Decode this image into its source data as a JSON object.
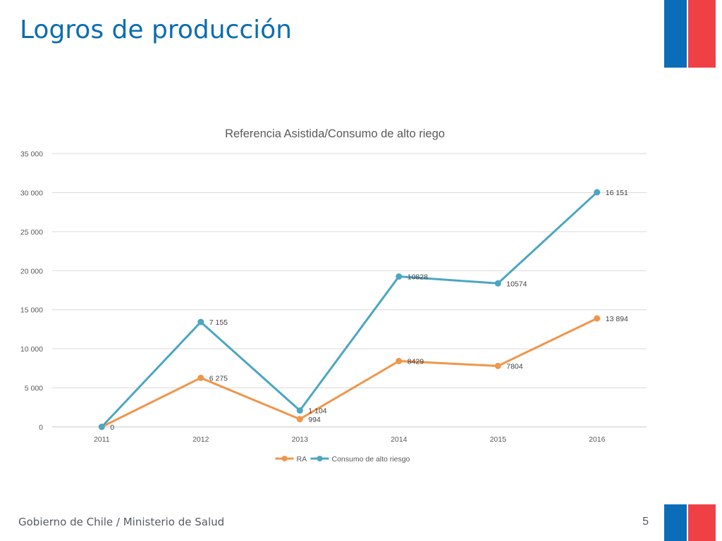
{
  "slide": {
    "title": "Logros de producción",
    "footer": "Gobierno de Chile / Ministerio de Salud",
    "page_number": "5",
    "colors": {
      "title": "#0b6db0",
      "flag_blue": "#0b6db8",
      "flag_red": "#ef4046"
    }
  },
  "chart_data": {
    "type": "line",
    "title": "Referencia Asistida/Consumo de alto riego",
    "xlabel": "",
    "ylabel": "",
    "x": [
      "2011",
      "2012",
      "2013",
      "2014",
      "2015",
      "2016"
    ],
    "ylim": [
      0,
      35000
    ],
    "y_ticks": [
      0,
      5000,
      10000,
      15000,
      20000,
      25000,
      30000,
      35000
    ],
    "y_tick_labels": [
      "0",
      "5 000",
      "10 000",
      "15 000",
      "20 000",
      "25 000",
      "30 000",
      "35 000"
    ],
    "grid": true,
    "legend_position": "bottom",
    "series": [
      {
        "name": "RA",
        "color": "#f0964a",
        "values": [
          0,
          6275,
          994,
          8429,
          7804,
          13894
        ],
        "data_labels": [
          "0",
          "6 275",
          "994",
          "8429",
          "7804",
          "13 894"
        ]
      },
      {
        "name": "Consumo de alto riesgo",
        "color": "#4ba6c2",
        "values": [
          0,
          13430,
          2098,
          19257,
          18378,
          30045
        ],
        "data_labels": [
          "",
          "7 155",
          "1 104",
          "10828",
          "10574",
          "16 151"
        ]
      }
    ]
  }
}
